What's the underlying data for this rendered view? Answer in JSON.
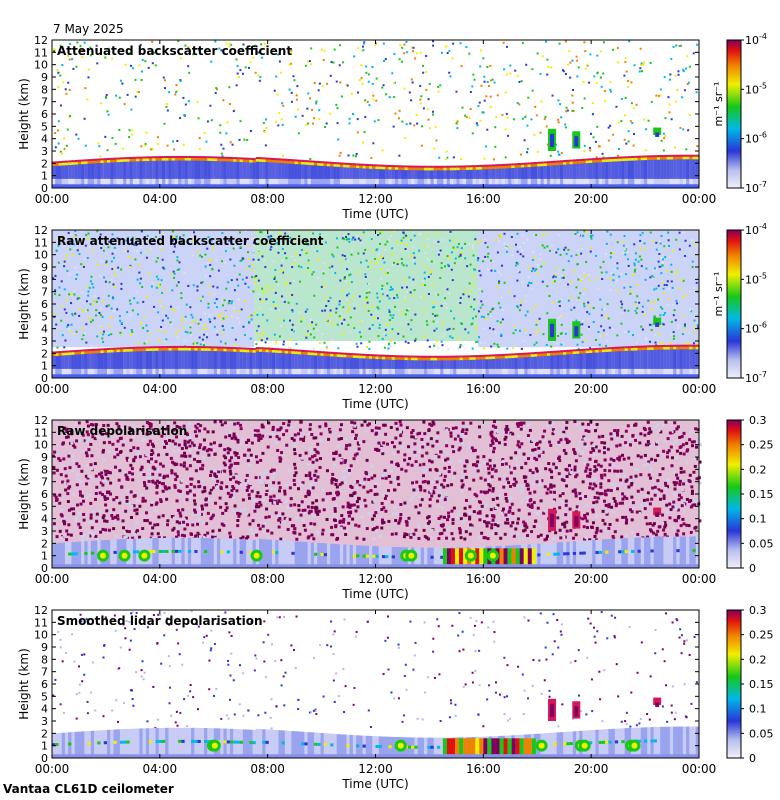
{
  "date": "7 May 2025",
  "footer": "Vantaa CL61D ceilometer",
  "colors": {
    "cloud": "#d6185a",
    "ground": "#4a60f0"
  },
  "chart_data": [
    {
      "type": "heatmap",
      "title": "Attenuated backscatter coefficient",
      "xlabel": "Time (UTC)",
      "ylabel": "Height (km)",
      "x_ticks": [
        "00:00",
        "04:00",
        "08:00",
        "12:00",
        "16:00",
        "20:00",
        "00:00"
      ],
      "y_ticks": [
        "0",
        "1",
        "2",
        "3",
        "4",
        "5",
        "6",
        "7",
        "8",
        "9",
        "10",
        "11",
        "12"
      ],
      "xlim_hours": [
        0,
        24
      ],
      "ylim_km": [
        0,
        12
      ],
      "colorbar": {
        "scale": "log",
        "range": [
          1e-07,
          0.0001
        ],
        "ticks": [
          {
            "base": "10",
            "exp": "-4"
          },
          {
            "base": "10",
            "exp": "-5"
          },
          {
            "base": "10",
            "exp": "-6"
          },
          {
            "base": "10",
            "exp": "-7"
          }
        ],
        "unit": "m⁻¹ sr⁻¹"
      }
    },
    {
      "type": "heatmap",
      "title": "Raw attenuated backscatter coefficient",
      "xlabel": "Time (UTC)",
      "ylabel": "Height (km)",
      "x_ticks": [
        "00:00",
        "04:00",
        "08:00",
        "12:00",
        "16:00",
        "20:00",
        "00:00"
      ],
      "y_ticks": [
        "0",
        "1",
        "2",
        "3",
        "4",
        "5",
        "6",
        "7",
        "8",
        "9",
        "10",
        "11",
        "12"
      ],
      "xlim_hours": [
        0,
        24
      ],
      "ylim_km": [
        0,
        12
      ],
      "colorbar": {
        "scale": "log",
        "range": [
          1e-07,
          0.0001
        ],
        "ticks": [
          {
            "base": "10",
            "exp": "-4"
          },
          {
            "base": "10",
            "exp": "-5"
          },
          {
            "base": "10",
            "exp": "-6"
          },
          {
            "base": "10",
            "exp": "-7"
          }
        ],
        "unit": "m⁻¹ sr⁻¹"
      }
    },
    {
      "type": "heatmap",
      "title": "Raw depolarisation",
      "xlabel": "Time (UTC)",
      "ylabel": "Height (km)",
      "x_ticks": [
        "00:00",
        "04:00",
        "08:00",
        "12:00",
        "16:00",
        "20:00",
        "00:00"
      ],
      "y_ticks": [
        "0",
        "1",
        "2",
        "3",
        "4",
        "5",
        "6",
        "7",
        "8",
        "9",
        "10",
        "11",
        "12"
      ],
      "xlim_hours": [
        0,
        24
      ],
      "ylim_km": [
        0,
        12
      ],
      "colorbar": {
        "scale": "linear",
        "range": [
          0,
          0.3
        ],
        "ticks": [
          "0.3",
          "0.25",
          "0.2",
          "0.15",
          "0.1",
          "0.05",
          "0"
        ],
        "unit": ""
      }
    },
    {
      "type": "heatmap",
      "title": "Smoothed lidar depolarisation",
      "xlabel": "Time (UTC)",
      "ylabel": "Height (km)",
      "x_ticks": [
        "00:00",
        "04:00",
        "08:00",
        "12:00",
        "16:00",
        "20:00",
        "00:00"
      ],
      "y_ticks": [
        "0",
        "1",
        "2",
        "3",
        "4",
        "5",
        "6",
        "7",
        "8",
        "9",
        "10",
        "11",
        "12"
      ],
      "xlim_hours": [
        0,
        24
      ],
      "ylim_km": [
        0,
        12
      ],
      "colorbar": {
        "scale": "linear",
        "range": [
          0,
          0.3
        ],
        "ticks": [
          "0.3",
          "0.25",
          "0.2",
          "0.15",
          "0.1",
          "0.05",
          "0"
        ],
        "unit": ""
      }
    }
  ]
}
